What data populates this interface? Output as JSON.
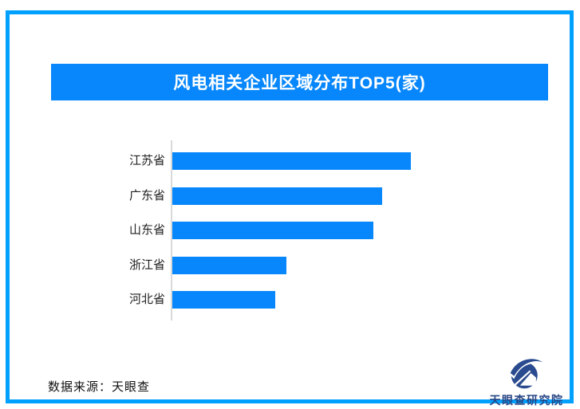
{
  "page": {
    "title": "风电相关企业区域分布TOP5(家)"
  },
  "footer": {
    "source": "数据来源：天眼查",
    "logo_text": "天眼查研究院"
  },
  "colors": {
    "frame_border": "#00A0FF",
    "title_bg": "#0787FB",
    "title_text": "#FFFFFF",
    "bar": "#0787FB",
    "label_text": "#222222",
    "axis_line": "#D9D9D9",
    "logo_navy": "#2A4B8F"
  },
  "chart_data": {
    "type": "bar",
    "orientation": "horizontal",
    "title": "风电相关企业区域分布TOP5(家)",
    "categories": [
      "江苏省",
      "广东省",
      "山东省",
      "浙江省",
      "河北省"
    ],
    "values": [
      299,
      263,
      252,
      143,
      129
    ],
    "values_note": "no numeric axis ticks or data labels are shown in the image; values are relative bar lengths measured in screen px from the axis baseline",
    "xlabel": "",
    "ylabel": "",
    "grid": false,
    "legend": false,
    "bar_color": "#0787FB"
  }
}
